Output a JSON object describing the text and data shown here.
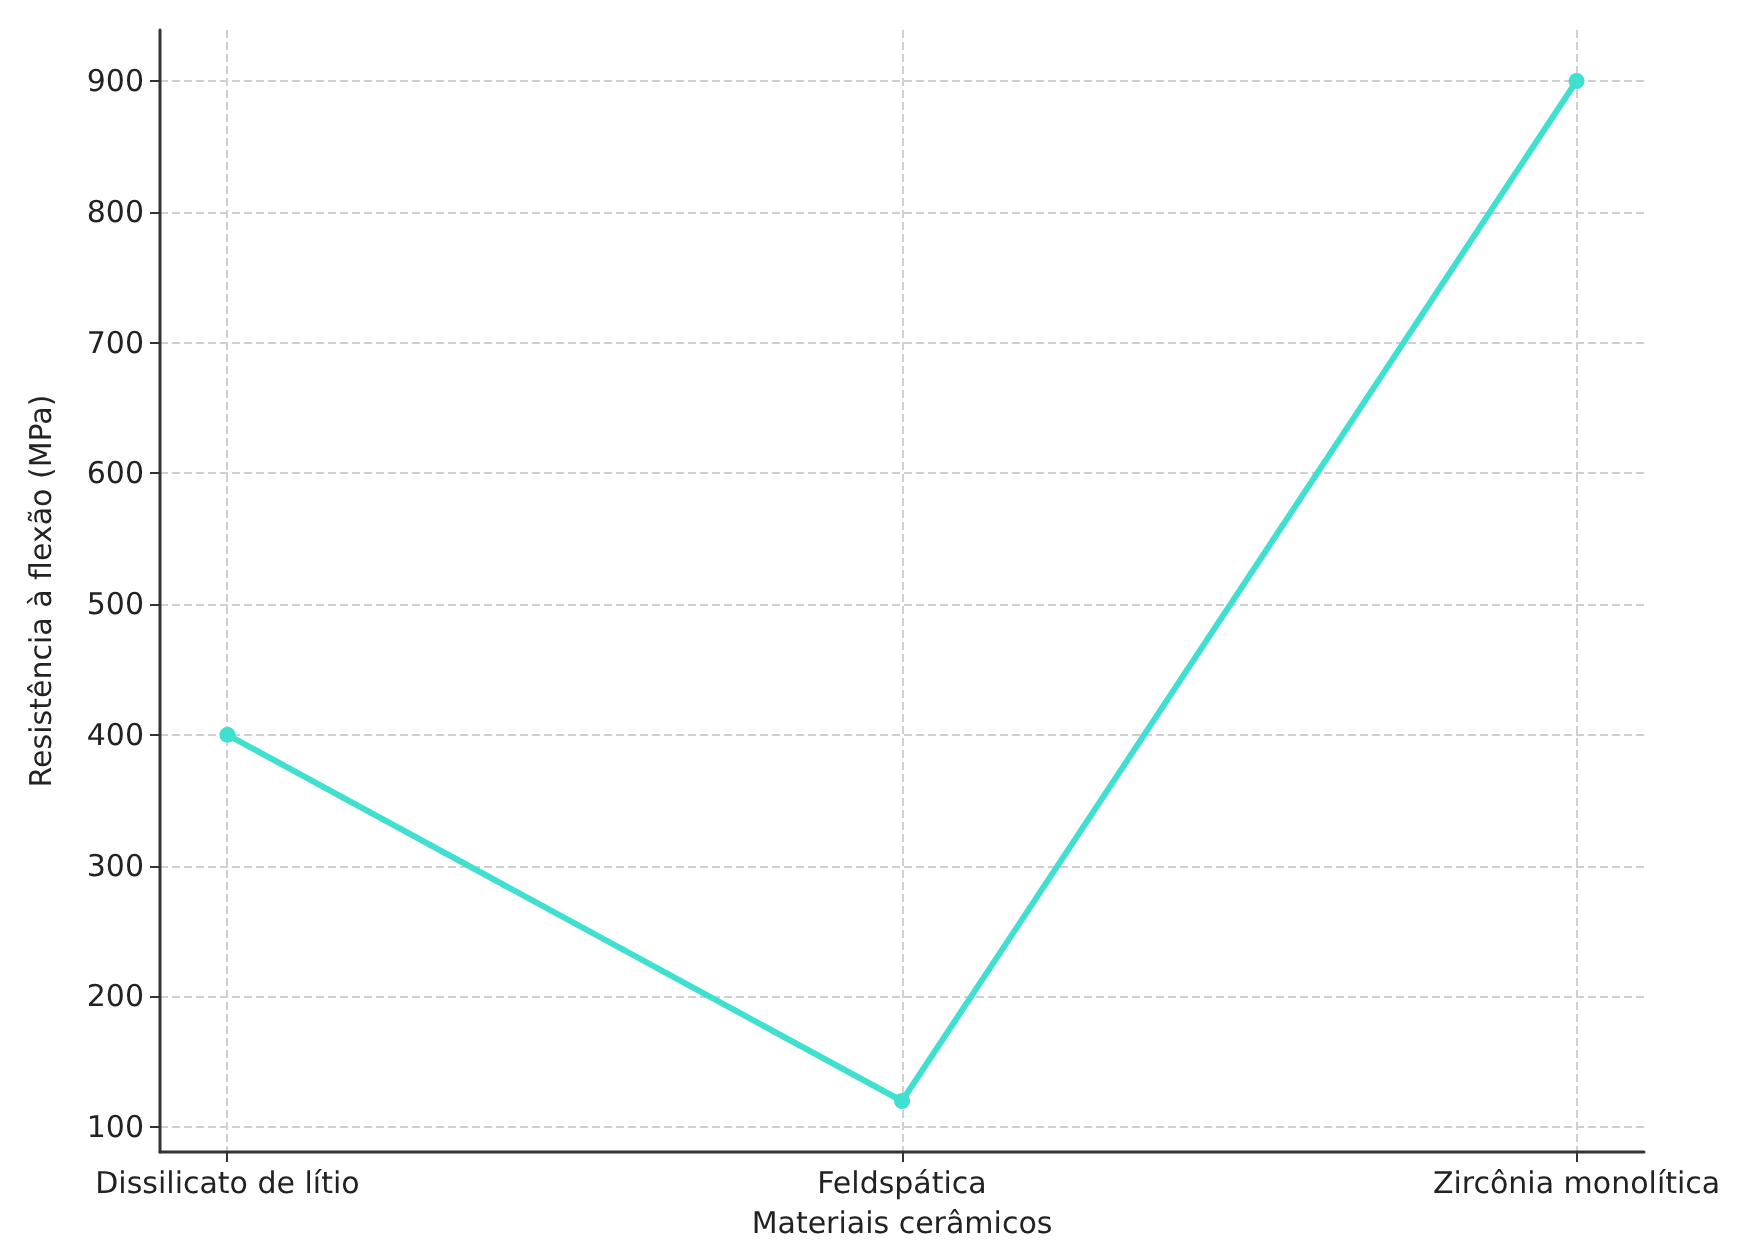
{
  "chart_data": {
    "type": "line",
    "xlabel": "Materiais cerâmicos",
    "ylabel": "Resistência à flexão (MPa)",
    "categories": [
      "Dissilicato de lítio",
      "Feldspática",
      "Zircônia monolítica"
    ],
    "series": [
      {
        "color": "#40e0d0",
        "values": [
          400,
          120,
          900
        ]
      }
    ],
    "ylim": [
      81,
      939
    ],
    "yticks": [
      100,
      200,
      300,
      400,
      500,
      600,
      700,
      800,
      900
    ],
    "grid": true,
    "marker": "circle",
    "line_style": "solid"
  }
}
